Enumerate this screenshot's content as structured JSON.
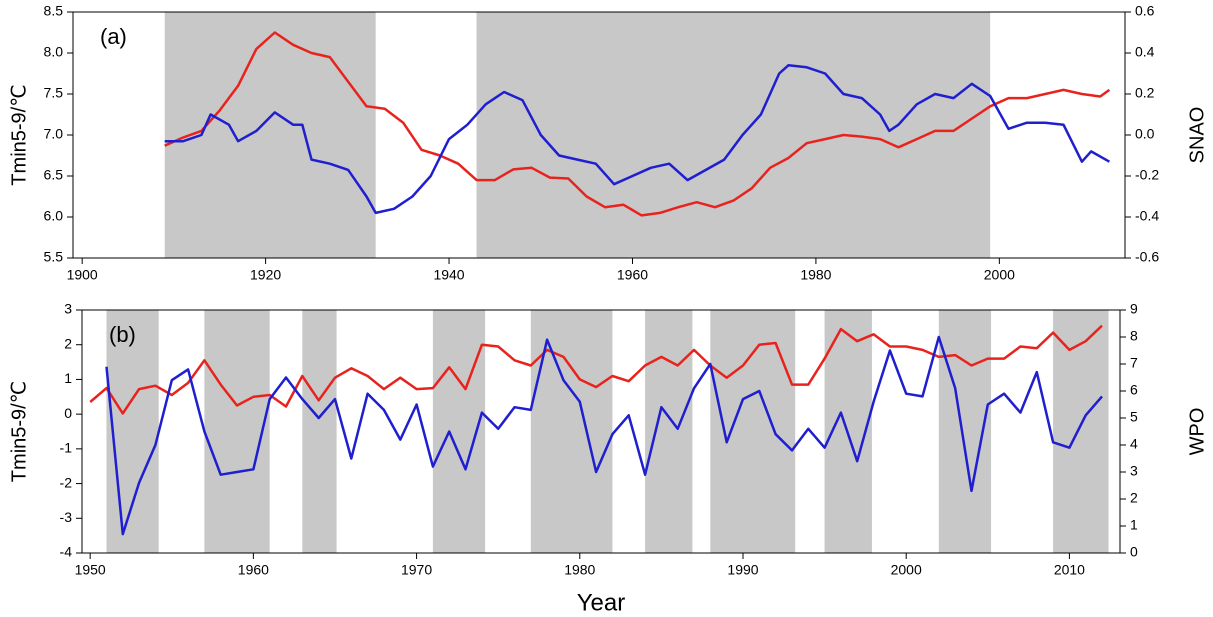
{
  "chart_data": [
    {
      "type": "line",
      "label": "(a)",
      "ylabel": "Tmin5-9/℃",
      "y2label": "SNAO",
      "xlim": [
        1899,
        2013.7
      ],
      "xticks": [
        1900,
        1920,
        1940,
        1960,
        1980,
        2000
      ],
      "ylim": [
        5.5,
        8.5
      ],
      "yticks": [
        {
          "value": 5.5,
          "label": "5.5"
        },
        {
          "value": 6,
          "label": "6.0"
        },
        {
          "value": 6.5,
          "label": "6.5"
        },
        {
          "value": 7,
          "label": "7.0"
        },
        {
          "value": 7.5,
          "label": "7.5"
        },
        {
          "value": 8,
          "label": "8.0"
        },
        {
          "value": 8.5,
          "label": "8.5"
        }
      ],
      "y2lim": [
        -0.6,
        0.6
      ],
      "y2ticks": [
        -0.6,
        -0.4,
        -0.2,
        {
          "value": 0,
          "label": "0.0"
        },
        0.2,
        0.4,
        0.6
      ],
      "shade_color": "#c8c8c8",
      "shaded": [
        [
          1909,
          1932
        ],
        [
          1943,
          1999
        ]
      ],
      "series": [
        {
          "color": "#e8231e",
          "x": [
            1909,
            1911,
            1913,
            1915,
            1917,
            1919,
            1921,
            1923,
            1925,
            1927,
            1929,
            1931,
            1933,
            1935,
            1937,
            1939,
            1941,
            1943,
            1945,
            1947,
            1949,
            1951,
            1953,
            1955,
            1957,
            1959,
            1961,
            1963,
            1965,
            1967,
            1969,
            1971,
            1973,
            1975,
            1977,
            1979,
            1981,
            1983,
            1985,
            1987,
            1989,
            1991,
            1993,
            1995,
            1997,
            1999,
            2001,
            2003,
            2005,
            2007,
            2009,
            2011,
            2012
          ],
          "values": [
            6.87,
            6.97,
            7.05,
            7.3,
            7.6,
            8.05,
            8.25,
            8.1,
            8.0,
            7.95,
            7.65,
            7.35,
            7.32,
            7.15,
            6.82,
            6.75,
            6.65,
            6.45,
            6.45,
            6.58,
            6.6,
            6.48,
            6.47,
            6.25,
            6.12,
            6.15,
            6.02,
            6.05,
            6.12,
            6.18,
            6.12,
            6.2,
            6.35,
            6.6,
            6.72,
            6.9,
            6.95,
            7.0,
            6.98,
            6.95,
            6.85,
            6.95,
            7.05,
            7.05,
            7.2,
            7.35,
            7.45,
            7.45,
            7.5,
            7.55,
            7.5,
            7.47,
            7.55
          ]
        },
        {
          "color": "#1f1fd0",
          "axis": "y2",
          "x": [
            1909,
            1911,
            1913,
            1914,
            1916,
            1917,
            1919,
            1921,
            1923,
            1924,
            1925,
            1927,
            1929,
            1931,
            1932,
            1934,
            1936,
            1938,
            1940,
            1942,
            1944,
            1946,
            1948,
            1950,
            1952,
            1954,
            1956,
            1958,
            1960,
            1962,
            1964,
            1966,
            1968,
            1970,
            1972,
            1974,
            1976,
            1977,
            1979,
            1981,
            1983,
            1985,
            1987,
            1988,
            1989,
            1991,
            1993,
            1995,
            1997,
            1999,
            2001,
            2003,
            2005,
            2007,
            2009,
            2010,
            2012
          ],
          "values": [
            -0.03,
            -0.03,
            0.0,
            0.1,
            0.05,
            -0.03,
            0.02,
            0.11,
            0.05,
            0.05,
            -0.12,
            -0.14,
            -0.17,
            -0.3,
            -0.38,
            -0.36,
            -0.3,
            -0.2,
            -0.02,
            0.05,
            0.15,
            0.21,
            0.17,
            0.0,
            -0.1,
            -0.12,
            -0.14,
            -0.24,
            -0.2,
            -0.16,
            -0.14,
            -0.22,
            -0.17,
            -0.12,
            0.0,
            0.1,
            0.3,
            0.34,
            0.33,
            0.3,
            0.2,
            0.18,
            0.1,
            0.02,
            0.05,
            0.15,
            0.2,
            0.18,
            0.25,
            0.19,
            0.03,
            0.06,
            0.06,
            0.05,
            -0.13,
            -0.08,
            -0.13
          ]
        }
      ]
    },
    {
      "type": "line",
      "label": "(b)",
      "ylabel": "Tmin5-9/℃",
      "y2label": "WPO",
      "xlabel": "Year",
      "xlim": [
        1949.5,
        2013.1
      ],
      "xticks": [
        1950,
        1960,
        1970,
        1980,
        1990,
        2000,
        2010
      ],
      "ylim": [
        -4,
        3
      ],
      "yticks": [
        -4,
        -3,
        -2,
        -1,
        0,
        1,
        2,
        3
      ],
      "y2lim": [
        0,
        9
      ],
      "y2ticks": [
        0,
        1,
        2,
        3,
        4,
        5,
        6,
        7,
        8,
        9
      ],
      "shade_color": "#c8c8c8",
      "shaded": [
        [
          1951,
          1954.2
        ],
        [
          1957,
          1961
        ],
        [
          1963,
          1965.1
        ],
        [
          1971,
          1974.2
        ],
        [
          1977,
          1982
        ],
        [
          1984,
          1986.9
        ],
        [
          1988,
          1993.2
        ],
        [
          1995,
          1997.9
        ],
        [
          2002,
          2005.2
        ],
        [
          2009,
          2012.4
        ]
      ],
      "series": [
        {
          "color": "#e8231e",
          "x": [
            1950,
            1951,
            1952,
            1953,
            1954,
            1955,
            1956,
            1957,
            1958,
            1959,
            1960,
            1961,
            1962,
            1963,
            1964,
            1965,
            1966,
            1967,
            1968,
            1969,
            1970,
            1971,
            1972,
            1973,
            1974,
            1975,
            1976,
            1977,
            1978,
            1979,
            1980,
            1981,
            1982,
            1983,
            1984,
            1985,
            1986,
            1987,
            1988,
            1989,
            1990,
            1991,
            1992,
            1993,
            1994,
            1995,
            1996,
            1997,
            1998,
            1999,
            2000,
            2001,
            2002,
            2003,
            2004,
            2005,
            2006,
            2007,
            2008,
            2009,
            2010,
            2011,
            2012
          ],
          "values": [
            0.35,
            0.75,
            0.02,
            0.72,
            0.82,
            0.55,
            0.9,
            1.55,
            0.85,
            0.25,
            0.5,
            0.55,
            0.22,
            1.1,
            0.4,
            1.05,
            1.32,
            1.1,
            0.72,
            1.05,
            0.72,
            0.75,
            1.35,
            0.72,
            2.0,
            1.95,
            1.55,
            1.4,
            1.85,
            1.65,
            1.0,
            0.78,
            1.1,
            0.95,
            1.4,
            1.65,
            1.4,
            1.85,
            1.4,
            1.05,
            1.4,
            2.0,
            2.05,
            0.85,
            0.85,
            1.6,
            2.45,
            2.1,
            2.3,
            1.95,
            1.95,
            1.85,
            1.65,
            1.7,
            1.4,
            1.6,
            1.6,
            1.95,
            1.9,
            2.35,
            1.85,
            2.1,
            2.55
          ]
        },
        {
          "color": "#1f1fd0",
          "axis": "y2",
          "x": [
            1951,
            1952,
            1953,
            1954,
            1955,
            1956,
            1957,
            1958,
            1959,
            1960,
            1961,
            1962,
            1963,
            1964,
            1965,
            1966,
            1967,
            1968,
            1969,
            1970,
            1971,
            1972,
            1973,
            1974,
            1975,
            1976,
            1977,
            1978,
            1979,
            1980,
            1981,
            1982,
            1983,
            1984,
            1985,
            1986,
            1987,
            1988,
            1989,
            1990,
            1991,
            1992,
            1993,
            1994,
            1995,
            1996,
            1997,
            1998,
            1999,
            2000,
            2001,
            2002,
            2003,
            2004,
            2005,
            2006,
            2007,
            2008,
            2009,
            2010,
            2011,
            2012
          ],
          "values": [
            6.9,
            0.7,
            2.6,
            4.0,
            6.4,
            6.8,
            4.5,
            2.9,
            3.0,
            3.1,
            5.7,
            6.5,
            5.7,
            5.0,
            5.7,
            3.5,
            5.9,
            5.3,
            4.2,
            5.5,
            3.2,
            4.5,
            3.1,
            5.2,
            4.6,
            5.4,
            5.3,
            7.9,
            6.4,
            5.6,
            3.0,
            4.4,
            5.1,
            2.9,
            5.4,
            4.6,
            6.1,
            7.0,
            4.1,
            5.7,
            6.0,
            4.4,
            3.8,
            4.6,
            3.9,
            5.2,
            3.4,
            5.6,
            7.5,
            5.9,
            5.8,
            8.0,
            6.1,
            2.3,
            5.5,
            5.9,
            5.2,
            6.7,
            4.1,
            3.9,
            5.1,
            5.8
          ]
        }
      ]
    }
  ]
}
